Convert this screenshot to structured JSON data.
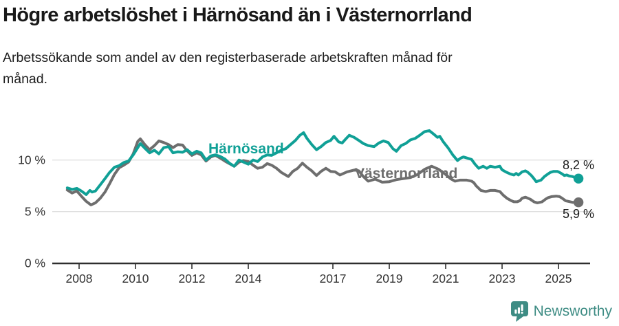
{
  "title": "Högre arbetslöshet i Härnösand än i Västernorrland",
  "subtitle": {
    "line1": "Arbetssökande som andel av den registerbaserade arbetskraften månad för",
    "line2": "månad."
  },
  "branding": {
    "logo_text": "Newsworthy",
    "logo_color": "#3e8c84"
  },
  "colors": {
    "harnosand": "#10a096",
    "vasternorrland": "#6e6e6e",
    "axis": "#2e2e2e",
    "gridline": "#e0e0e0",
    "tick_label": "#333333",
    "end_label": "#1a1a1a"
  },
  "chart_data": {
    "type": "line",
    "unit": "%",
    "ylim": [
      0,
      13.5
    ],
    "grid": "horizontal-only",
    "y_ticks": [
      {
        "value": 10,
        "label": "10 %"
      },
      {
        "value": 5,
        "label": "5 %"
      },
      {
        "value": 0,
        "label": "0 %"
      }
    ],
    "x_ticks": [
      {
        "value": 2008,
        "label": "2008"
      },
      {
        "value": 2010,
        "label": "2010"
      },
      {
        "value": 2012,
        "label": "2012"
      },
      {
        "value": 2014,
        "label": "2014"
      },
      {
        "value": 2017,
        "label": "2017"
      },
      {
        "value": 2019,
        "label": "2019"
      },
      {
        "value": 2021,
        "label": "2021"
      },
      {
        "value": 2023,
        "label": "2023"
      },
      {
        "value": 2025,
        "label": "2025"
      }
    ],
    "series": [
      {
        "name": "Västernorrland",
        "color": "#6e6e6e",
        "end_label": "5,9 %",
        "end_value": 5.9,
        "points": [
          [
            2007.58,
            7.1
          ],
          [
            2007.75,
            6.8
          ],
          [
            2007.92,
            7.0
          ],
          [
            2008.08,
            6.5
          ],
          [
            2008.25,
            6.0
          ],
          [
            2008.42,
            5.65
          ],
          [
            2008.58,
            5.85
          ],
          [
            2008.75,
            6.3
          ],
          [
            2008.92,
            6.9
          ],
          [
            2009.08,
            7.7
          ],
          [
            2009.25,
            8.6
          ],
          [
            2009.42,
            9.25
          ],
          [
            2009.58,
            9.5
          ],
          [
            2009.75,
            9.8
          ],
          [
            2009.92,
            10.6
          ],
          [
            2010.08,
            11.8
          ],
          [
            2010.17,
            12.05
          ],
          [
            2010.33,
            11.5
          ],
          [
            2010.5,
            11.0
          ],
          [
            2010.67,
            11.4
          ],
          [
            2010.83,
            11.85
          ],
          [
            2011.0,
            11.7
          ],
          [
            2011.17,
            11.5
          ],
          [
            2011.33,
            11.2
          ],
          [
            2011.5,
            11.5
          ],
          [
            2011.67,
            11.45
          ],
          [
            2011.83,
            10.9
          ],
          [
            2012.0,
            10.45
          ],
          [
            2012.17,
            10.7
          ],
          [
            2012.33,
            10.5
          ],
          [
            2012.5,
            9.9
          ],
          [
            2012.67,
            10.3
          ],
          [
            2012.83,
            10.45
          ],
          [
            2013.0,
            10.2
          ],
          [
            2013.17,
            9.9
          ],
          [
            2013.33,
            9.65
          ],
          [
            2013.5,
            9.4
          ],
          [
            2013.67,
            9.8
          ],
          [
            2013.83,
            9.95
          ],
          [
            2014.0,
            9.85
          ],
          [
            2014.17,
            9.5
          ],
          [
            2014.33,
            9.2
          ],
          [
            2014.5,
            9.3
          ],
          [
            2014.67,
            9.65
          ],
          [
            2014.83,
            9.5
          ],
          [
            2015.0,
            9.2
          ],
          [
            2015.17,
            8.8
          ],
          [
            2015.42,
            8.4
          ],
          [
            2015.58,
            8.9
          ],
          [
            2015.75,
            9.2
          ],
          [
            2015.92,
            9.7
          ],
          [
            2016.08,
            9.3
          ],
          [
            2016.25,
            8.95
          ],
          [
            2016.42,
            8.5
          ],
          [
            2016.58,
            8.9
          ],
          [
            2016.75,
            9.2
          ],
          [
            2016.92,
            8.9
          ],
          [
            2017.08,
            8.85
          ],
          [
            2017.25,
            8.55
          ],
          [
            2017.5,
            8.85
          ],
          [
            2017.79,
            9.05
          ],
          [
            2017.92,
            8.95
          ],
          [
            2018.08,
            8.4
          ],
          [
            2018.25,
            7.95
          ],
          [
            2018.5,
            8.15
          ],
          [
            2018.75,
            7.85
          ],
          [
            2019.0,
            7.9
          ],
          [
            2019.25,
            8.1
          ],
          [
            2019.5,
            8.2
          ],
          [
            2019.75,
            8.3
          ],
          [
            2020.0,
            8.6
          ],
          [
            2020.25,
            9.1
          ],
          [
            2020.5,
            9.4
          ],
          [
            2020.75,
            9.1
          ],
          [
            2021.0,
            8.6
          ],
          [
            2021.17,
            8.2
          ],
          [
            2021.33,
            7.95
          ],
          [
            2021.5,
            8.05
          ],
          [
            2021.75,
            8.05
          ],
          [
            2021.92,
            7.95
          ],
          [
            2022.0,
            7.8
          ],
          [
            2022.08,
            7.5
          ],
          [
            2022.25,
            7.05
          ],
          [
            2022.42,
            6.95
          ],
          [
            2022.58,
            7.05
          ],
          [
            2022.75,
            7.05
          ],
          [
            2022.92,
            6.95
          ],
          [
            2023.04,
            6.6
          ],
          [
            2023.17,
            6.3
          ],
          [
            2023.33,
            6.05
          ],
          [
            2023.42,
            5.95
          ],
          [
            2023.54,
            5.95
          ],
          [
            2023.63,
            6.05
          ],
          [
            2023.71,
            6.3
          ],
          [
            2023.83,
            6.4
          ],
          [
            2024.0,
            6.2
          ],
          [
            2024.13,
            5.95
          ],
          [
            2024.25,
            5.85
          ],
          [
            2024.42,
            5.95
          ],
          [
            2024.54,
            6.2
          ],
          [
            2024.63,
            6.35
          ],
          [
            2024.75,
            6.45
          ],
          [
            2024.92,
            6.5
          ],
          [
            2025.04,
            6.45
          ],
          [
            2025.13,
            6.3
          ],
          [
            2025.25,
            6.05
          ],
          [
            2025.42,
            5.95
          ],
          [
            2025.5,
            5.9
          ],
          [
            2025.58,
            5.9
          ],
          [
            2025.71,
            5.9
          ]
        ]
      },
      {
        "name": "Härnösand",
        "color": "#10a096",
        "end_label": "8,2 %",
        "end_value": 8.2,
        "points": [
          [
            2007.58,
            7.3
          ],
          [
            2007.75,
            7.15
          ],
          [
            2007.92,
            7.25
          ],
          [
            2008.08,
            7.0
          ],
          [
            2008.25,
            6.65
          ],
          [
            2008.38,
            7.05
          ],
          [
            2008.46,
            6.9
          ],
          [
            2008.58,
            7.0
          ],
          [
            2008.75,
            7.6
          ],
          [
            2008.92,
            8.2
          ],
          [
            2009.08,
            8.8
          ],
          [
            2009.25,
            9.3
          ],
          [
            2009.42,
            9.45
          ],
          [
            2009.58,
            9.75
          ],
          [
            2009.75,
            9.9
          ],
          [
            2009.92,
            10.5
          ],
          [
            2010.08,
            11.2
          ],
          [
            2010.17,
            11.6
          ],
          [
            2010.33,
            11.15
          ],
          [
            2010.5,
            10.7
          ],
          [
            2010.67,
            10.95
          ],
          [
            2010.83,
            10.6
          ],
          [
            2011.0,
            11.2
          ],
          [
            2011.17,
            11.3
          ],
          [
            2011.33,
            10.7
          ],
          [
            2011.5,
            10.8
          ],
          [
            2011.67,
            10.75
          ],
          [
            2011.83,
            11.0
          ],
          [
            2012.0,
            10.6
          ],
          [
            2012.17,
            10.85
          ],
          [
            2012.33,
            10.7
          ],
          [
            2012.5,
            10.0
          ],
          [
            2012.67,
            10.4
          ],
          [
            2012.83,
            10.5
          ],
          [
            2013.0,
            10.35
          ],
          [
            2013.17,
            10.1
          ],
          [
            2013.33,
            9.7
          ],
          [
            2013.5,
            9.4
          ],
          [
            2013.67,
            10.0
          ],
          [
            2013.83,
            9.8
          ],
          [
            2014.0,
            9.6
          ],
          [
            2014.17,
            10.0
          ],
          [
            2014.33,
            9.85
          ],
          [
            2014.5,
            10.3
          ],
          [
            2014.67,
            10.5
          ],
          [
            2014.83,
            10.45
          ],
          [
            2015.0,
            10.7
          ],
          [
            2015.17,
            10.95
          ],
          [
            2015.33,
            11.1
          ],
          [
            2015.5,
            11.5
          ],
          [
            2015.67,
            11.9
          ],
          [
            2015.83,
            12.4
          ],
          [
            2015.96,
            12.65
          ],
          [
            2016.08,
            12.1
          ],
          [
            2016.25,
            11.5
          ],
          [
            2016.42,
            11.0
          ],
          [
            2016.58,
            11.3
          ],
          [
            2016.75,
            11.7
          ],
          [
            2016.92,
            11.9
          ],
          [
            2017.04,
            12.3
          ],
          [
            2017.21,
            11.75
          ],
          [
            2017.33,
            11.65
          ],
          [
            2017.46,
            12.05
          ],
          [
            2017.58,
            12.4
          ],
          [
            2017.75,
            12.2
          ],
          [
            2017.92,
            11.9
          ],
          [
            2018.08,
            11.6
          ],
          [
            2018.25,
            11.4
          ],
          [
            2018.46,
            11.3
          ],
          [
            2018.63,
            11.65
          ],
          [
            2018.79,
            11.85
          ],
          [
            2018.96,
            11.7
          ],
          [
            2019.13,
            11.1
          ],
          [
            2019.25,
            10.85
          ],
          [
            2019.42,
            11.4
          ],
          [
            2019.58,
            11.6
          ],
          [
            2019.75,
            11.95
          ],
          [
            2019.92,
            12.1
          ],
          [
            2020.08,
            12.4
          ],
          [
            2020.25,
            12.75
          ],
          [
            2020.42,
            12.85
          ],
          [
            2020.58,
            12.5
          ],
          [
            2020.71,
            12.2
          ],
          [
            2020.79,
            12.3
          ],
          [
            2020.92,
            11.75
          ],
          [
            2021.08,
            11.2
          ],
          [
            2021.25,
            10.5
          ],
          [
            2021.42,
            9.95
          ],
          [
            2021.54,
            10.2
          ],
          [
            2021.63,
            10.3
          ],
          [
            2021.75,
            10.2
          ],
          [
            2021.92,
            10.05
          ],
          [
            2022.04,
            9.6
          ],
          [
            2022.17,
            9.2
          ],
          [
            2022.33,
            9.4
          ],
          [
            2022.46,
            9.2
          ],
          [
            2022.58,
            9.4
          ],
          [
            2022.75,
            9.3
          ],
          [
            2022.92,
            9.4
          ],
          [
            2023.0,
            9.05
          ],
          [
            2023.13,
            8.85
          ],
          [
            2023.29,
            8.65
          ],
          [
            2023.42,
            8.55
          ],
          [
            2023.5,
            8.7
          ],
          [
            2023.58,
            8.55
          ],
          [
            2023.71,
            8.85
          ],
          [
            2023.83,
            8.95
          ],
          [
            2023.92,
            8.8
          ],
          [
            2024.04,
            8.5
          ],
          [
            2024.13,
            8.2
          ],
          [
            2024.21,
            7.9
          ],
          [
            2024.38,
            8.05
          ],
          [
            2024.5,
            8.4
          ],
          [
            2024.63,
            8.65
          ],
          [
            2024.71,
            8.8
          ],
          [
            2024.83,
            8.9
          ],
          [
            2024.96,
            8.9
          ],
          [
            2025.04,
            8.8
          ],
          [
            2025.13,
            8.65
          ],
          [
            2025.21,
            8.5
          ],
          [
            2025.29,
            8.55
          ],
          [
            2025.38,
            8.45
          ],
          [
            2025.5,
            8.4
          ],
          [
            2025.58,
            8.3
          ],
          [
            2025.71,
            8.2
          ]
        ]
      }
    ]
  }
}
